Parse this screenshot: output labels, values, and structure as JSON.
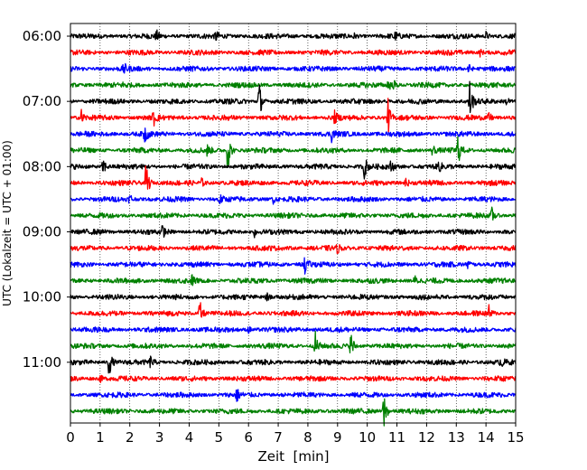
{
  "chart_data": {
    "type": "line",
    "subtype": "helicorder-seismogram",
    "xlabel": "Zeit  [min]",
    "ylabel": "UTC (Lokalzeit = UTC + 01:00)",
    "xlim": [
      0,
      15
    ],
    "x_ticks": [
      0,
      1,
      2,
      3,
      4,
      5,
      6,
      7,
      8,
      9,
      10,
      11,
      12,
      13,
      14,
      15
    ],
    "grid": "vertical dotted",
    "trace_minutes": 15,
    "trace_colors": [
      "#000000",
      "#ff0000",
      "#0000ff",
      "#008000"
    ],
    "y_tick_labels": [
      {
        "trace_index": 0,
        "label": "06:00"
      },
      {
        "trace_index": 4,
        "label": "07:00"
      },
      {
        "trace_index": 8,
        "label": "08:00"
      },
      {
        "trace_index": 12,
        "label": "09:00"
      },
      {
        "trace_index": 16,
        "label": "10:00"
      },
      {
        "trace_index": 20,
        "label": "11:00"
      }
    ],
    "traces": [
      {
        "start": "06:00",
        "color_index": 0,
        "events": [
          {
            "min": 2.9,
            "amp": 0.3
          },
          {
            "min": 4.9,
            "amp": 0.3
          },
          {
            "min": 9.5,
            "amp": 0.3
          },
          {
            "min": 10.9,
            "amp": 0.3
          },
          {
            "min": 14.0,
            "amp": 0.25
          }
        ]
      },
      {
        "start": "06:15",
        "color_index": 1,
        "events": [
          {
            "min": 9.2,
            "amp": 0.25
          },
          {
            "min": 13.8,
            "amp": 0.2
          }
        ]
      },
      {
        "start": "06:30",
        "color_index": 2,
        "events": [
          {
            "min": 1.8,
            "amp": 0.3
          },
          {
            "min": 13.4,
            "amp": 0.35
          }
        ]
      },
      {
        "start": "06:45",
        "color_index": 3,
        "events": [
          {
            "min": 1.8,
            "amp": 0.2
          },
          {
            "min": 10.7,
            "amp": 0.45
          },
          {
            "min": 10.9,
            "amp": 0.3
          }
        ]
      },
      {
        "start": "07:00",
        "color_index": 0,
        "events": [
          {
            "min": 6.35,
            "amp": 1.4
          },
          {
            "min": 13.45,
            "amp": 1.3
          },
          {
            "min": 14.7,
            "amp": 0.35
          }
        ]
      },
      {
        "start": "07:15",
        "color_index": 1,
        "events": [
          {
            "min": 0.35,
            "amp": 0.6
          },
          {
            "min": 2.8,
            "amp": 0.5
          },
          {
            "min": 8.9,
            "amp": 0.35
          },
          {
            "min": 10.7,
            "amp": 1.1
          },
          {
            "min": 14.1,
            "amp": 0.3
          }
        ]
      },
      {
        "start": "07:30",
        "color_index": 2,
        "events": [
          {
            "min": 2.5,
            "amp": 0.6
          },
          {
            "min": 8.8,
            "amp": 0.4
          }
        ]
      },
      {
        "start": "07:45",
        "color_index": 3,
        "events": [
          {
            "min": 4.6,
            "amp": 0.3
          },
          {
            "min": 5.3,
            "amp": 1.4
          },
          {
            "min": 12.2,
            "amp": 0.35
          },
          {
            "min": 13.05,
            "amp": 1.0
          }
        ]
      },
      {
        "start": "08:00",
        "color_index": 0,
        "events": [
          {
            "min": 1.1,
            "amp": 0.55
          },
          {
            "min": 9.9,
            "amp": 0.75
          },
          {
            "min": 10.8,
            "amp": 0.35
          },
          {
            "min": 12.4,
            "amp": 0.35
          }
        ]
      },
      {
        "start": "08:15",
        "color_index": 1,
        "events": [
          {
            "min": 2.55,
            "amp": 1.4
          },
          {
            "min": 4.4,
            "amp": 0.3
          },
          {
            "min": 11.3,
            "amp": 0.3
          }
        ]
      },
      {
        "start": "08:30",
        "color_index": 2,
        "events": [
          {
            "min": 2.0,
            "amp": 0.35
          },
          {
            "min": 5.0,
            "amp": 0.45
          },
          {
            "min": 6.8,
            "amp": 0.35
          }
        ]
      },
      {
        "start": "08:45",
        "color_index": 3,
        "events": [
          {
            "min": 14.2,
            "amp": 0.45
          }
        ]
      },
      {
        "start": "09:00",
        "color_index": 0,
        "events": [
          {
            "min": 3.1,
            "amp": 0.35
          },
          {
            "min": 6.2,
            "amp": 0.3
          }
        ]
      },
      {
        "start": "09:15",
        "color_index": 1,
        "events": [
          {
            "min": 9.0,
            "amp": 0.25
          }
        ]
      },
      {
        "start": "09:30",
        "color_index": 2,
        "events": [
          {
            "min": 7.9,
            "amp": 0.55
          },
          {
            "min": 13.4,
            "amp": 0.35
          }
        ]
      },
      {
        "start": "09:45",
        "color_index": 3,
        "events": [
          {
            "min": 4.1,
            "amp": 0.3
          },
          {
            "min": 11.6,
            "amp": 0.3
          }
        ]
      },
      {
        "start": "10:00",
        "color_index": 0,
        "events": [
          {
            "min": 6.6,
            "amp": 0.3
          }
        ]
      },
      {
        "start": "10:15",
        "color_index": 1,
        "events": [
          {
            "min": 4.35,
            "amp": 0.9
          },
          {
            "min": 14.1,
            "amp": 0.4
          }
        ]
      },
      {
        "start": "10:30",
        "color_index": 2,
        "events": [
          {
            "min": 6.0,
            "amp": 0.2
          }
        ]
      },
      {
        "start": "10:45",
        "color_index": 3,
        "events": [
          {
            "min": 8.25,
            "amp": 0.8
          },
          {
            "min": 9.45,
            "amp": 0.9
          }
        ]
      },
      {
        "start": "11:00",
        "color_index": 0,
        "events": [
          {
            "min": 1.3,
            "amp": 1.0
          },
          {
            "min": 2.7,
            "amp": 0.35
          },
          {
            "min": 14.5,
            "amp": 0.3
          }
        ]
      },
      {
        "start": "11:15",
        "color_index": 1,
        "events": [
          {
            "min": 1.0,
            "amp": 0.2
          }
        ]
      },
      {
        "start": "11:30",
        "color_index": 2,
        "events": [
          {
            "min": 5.6,
            "amp": 0.4
          }
        ]
      },
      {
        "start": "11:45",
        "color_index": 3,
        "events": [
          {
            "min": 10.55,
            "amp": 1.5
          }
        ]
      }
    ]
  }
}
